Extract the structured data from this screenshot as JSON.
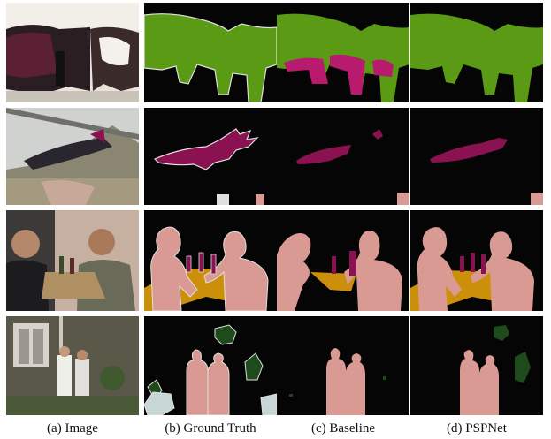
{
  "figure": {
    "captions": [
      "(a) Image",
      "(b) Ground Truth",
      "(c) Baseline",
      "(d) PSPNet"
    ]
  },
  "colors": {
    "background_class": "#050505",
    "cow": "#5a9a14",
    "aeroplane": "#8a1250",
    "person": "#d99a94",
    "bottle": "#8a1250",
    "dining_table": "#cc8f0a",
    "pottedplant": "#1e4a1c",
    "sofa_boundary": "#e0e0e0",
    "misclass_magenta": "#b81a6e"
  }
}
